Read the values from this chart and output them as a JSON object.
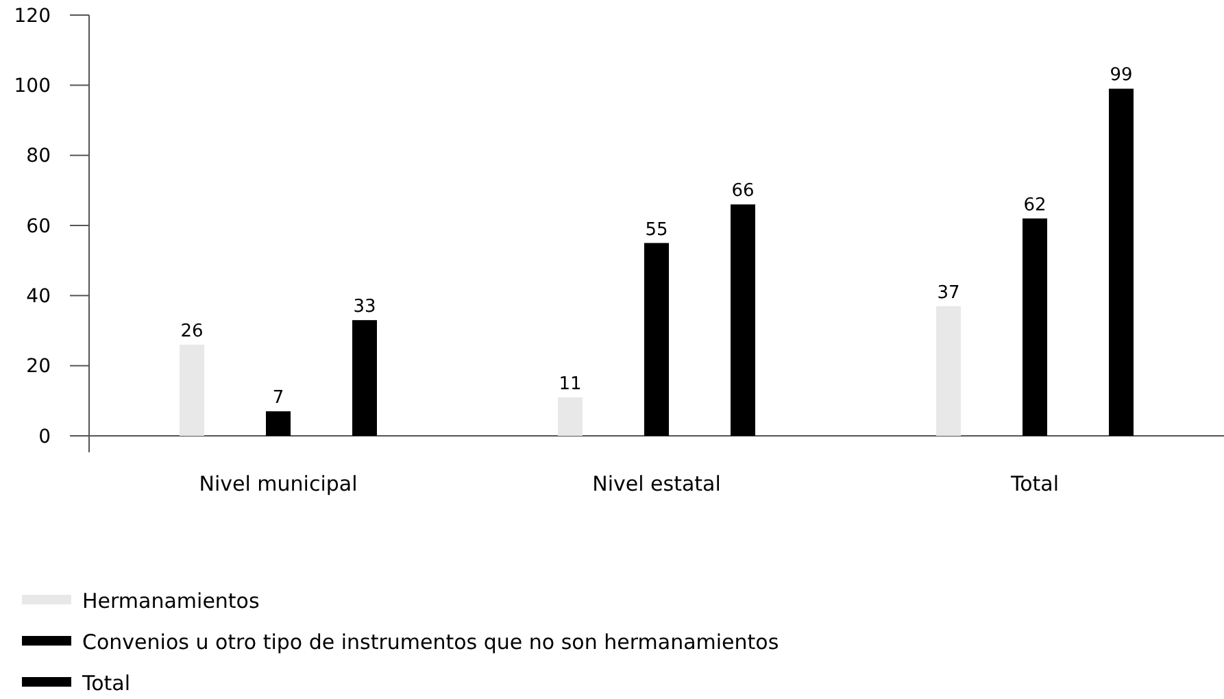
{
  "chart_data": {
    "type": "bar",
    "categories": [
      "Nivel municipal",
      "Nivel estatal",
      "Total"
    ],
    "series": [
      {
        "name": "Hermanamientos",
        "color": "#e8e8e8",
        "values": [
          26,
          11,
          37
        ]
      },
      {
        "name": "Convenios u otro tipo de instrumentos que no son hermanamientos",
        "color": "#000000",
        "values": [
          7,
          55,
          62
        ]
      },
      {
        "name": "Total",
        "color": "#000000",
        "values": [
          33,
          66,
          99
        ]
      }
    ],
    "ylim": [
      0,
      120
    ],
    "yticks": [
      0,
      20,
      40,
      60,
      80,
      100,
      120
    ],
    "data_labels": true,
    "legend": "bottom left",
    "grid": false
  }
}
